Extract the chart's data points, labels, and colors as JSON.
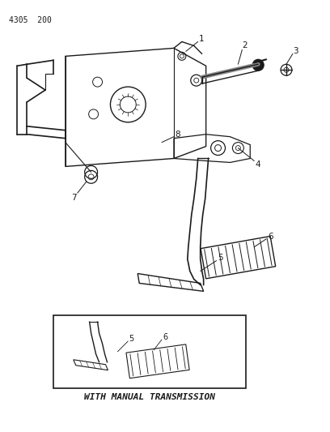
{
  "page_ref": "4305  200",
  "background_color": "#ffffff",
  "line_color": "#1a1a1a",
  "figure_width": 4.08,
  "figure_height": 5.33,
  "dpi": 100,
  "inset_label": "WITH MANUAL TRANSMISSION"
}
